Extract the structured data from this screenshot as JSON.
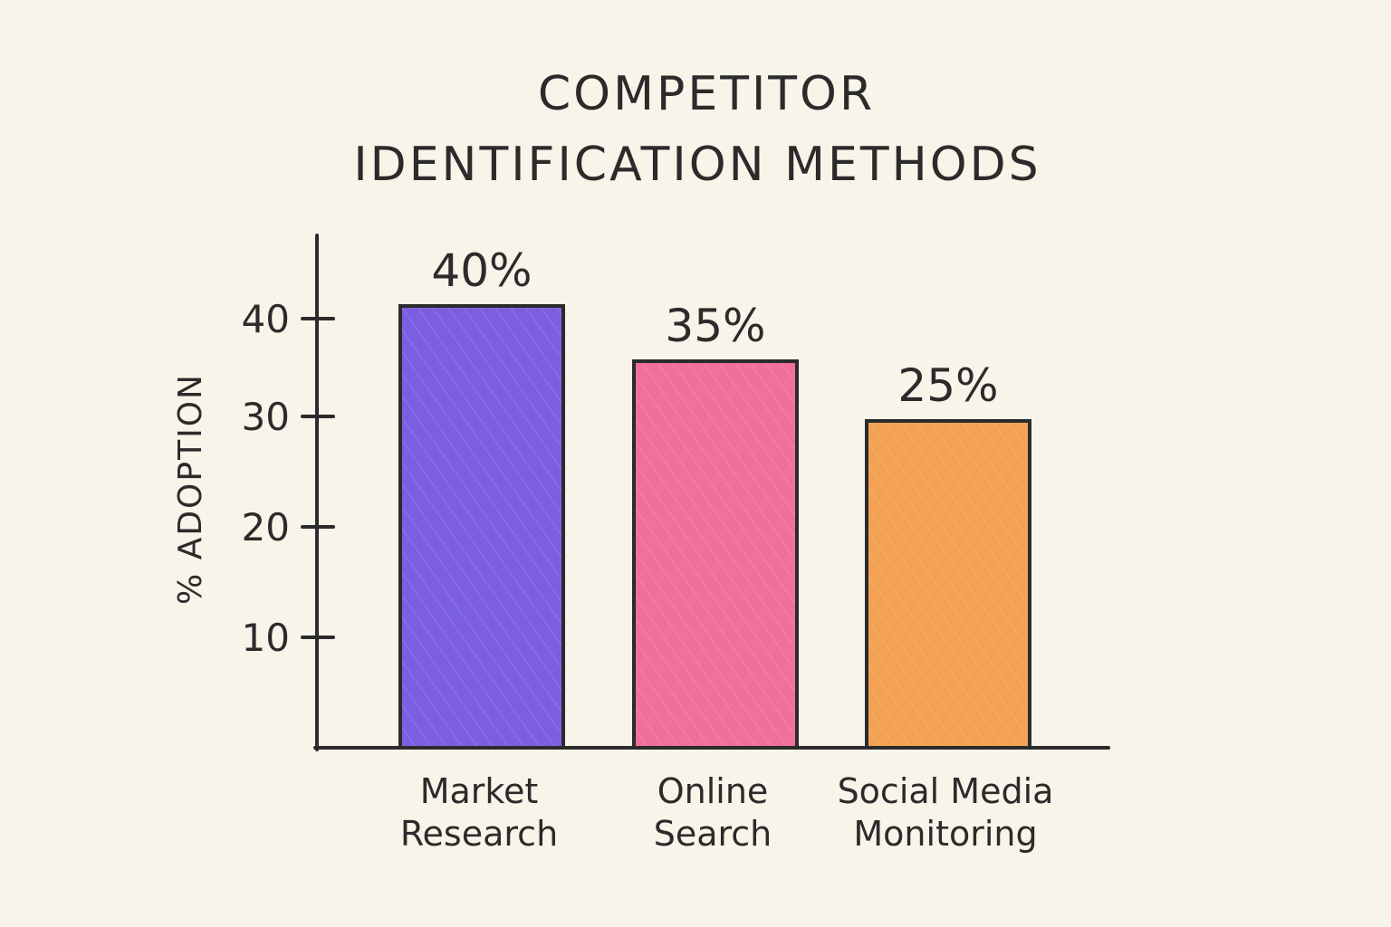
{
  "chart_data": {
    "type": "bar",
    "title_lines": [
      "COMPETITOR",
      "IDENTIFICATION METHODS"
    ],
    "ylabel": "% ADOPTION",
    "xlabel": "",
    "categories": [
      [
        "Market",
        "Research"
      ],
      [
        "Online",
        "Search"
      ],
      [
        "Social Media",
        "Monitoring"
      ]
    ],
    "values": [
      40,
      35,
      25
    ],
    "data_labels": [
      "40%",
      "35%",
      "25%"
    ],
    "colors": [
      "#7b5fe0",
      "#f0709a",
      "#f2a252"
    ],
    "yticks": [
      10,
      20,
      30,
      40
    ],
    "ylim": [
      0,
      48
    ],
    "grid": false,
    "legend": "none"
  }
}
